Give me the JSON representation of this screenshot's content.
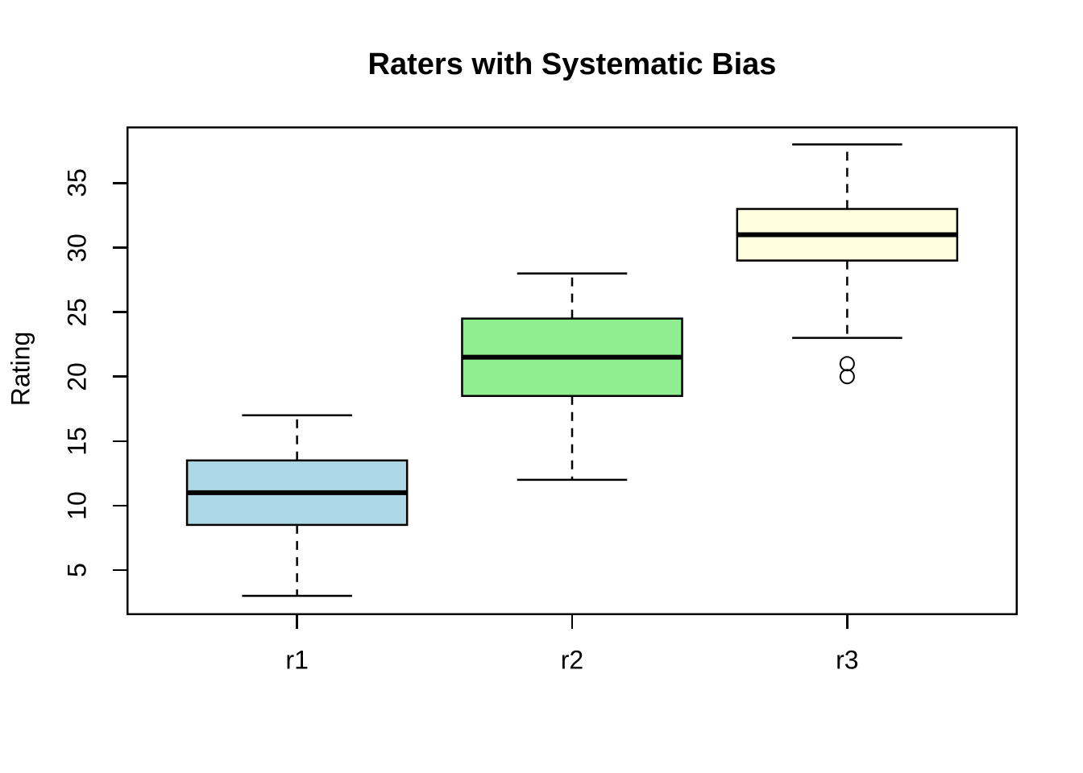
{
  "chart_data": {
    "type": "boxplot",
    "title": "Raters with Systematic Bias",
    "xlabel": "",
    "ylabel": "Rating",
    "categories": [
      "r1",
      "r2",
      "r3"
    ],
    "y_ticks": [
      5,
      10,
      15,
      20,
      25,
      30,
      35
    ],
    "ylim": [
      1.5,
      39.4
    ],
    "grid": false,
    "legend": false,
    "axis_color": "#000000",
    "background": "#FFFFFF",
    "series": [
      {
        "name": "r1",
        "min": 3,
        "q1": 8.5,
        "median": 11,
        "q3": 13.5,
        "max": 17,
        "outliers": [],
        "fill": "#ADD8E6"
      },
      {
        "name": "r2",
        "min": 12,
        "q1": 18.5,
        "median": 21.5,
        "q3": 24.5,
        "max": 28,
        "outliers": [],
        "fill": "#90EE90"
      },
      {
        "name": "r3",
        "min": 23,
        "q1": 29,
        "median": 31,
        "q3": 33,
        "max": 38,
        "outliers": [
          21,
          20
        ],
        "fill": "#FFFFE0"
      }
    ]
  }
}
